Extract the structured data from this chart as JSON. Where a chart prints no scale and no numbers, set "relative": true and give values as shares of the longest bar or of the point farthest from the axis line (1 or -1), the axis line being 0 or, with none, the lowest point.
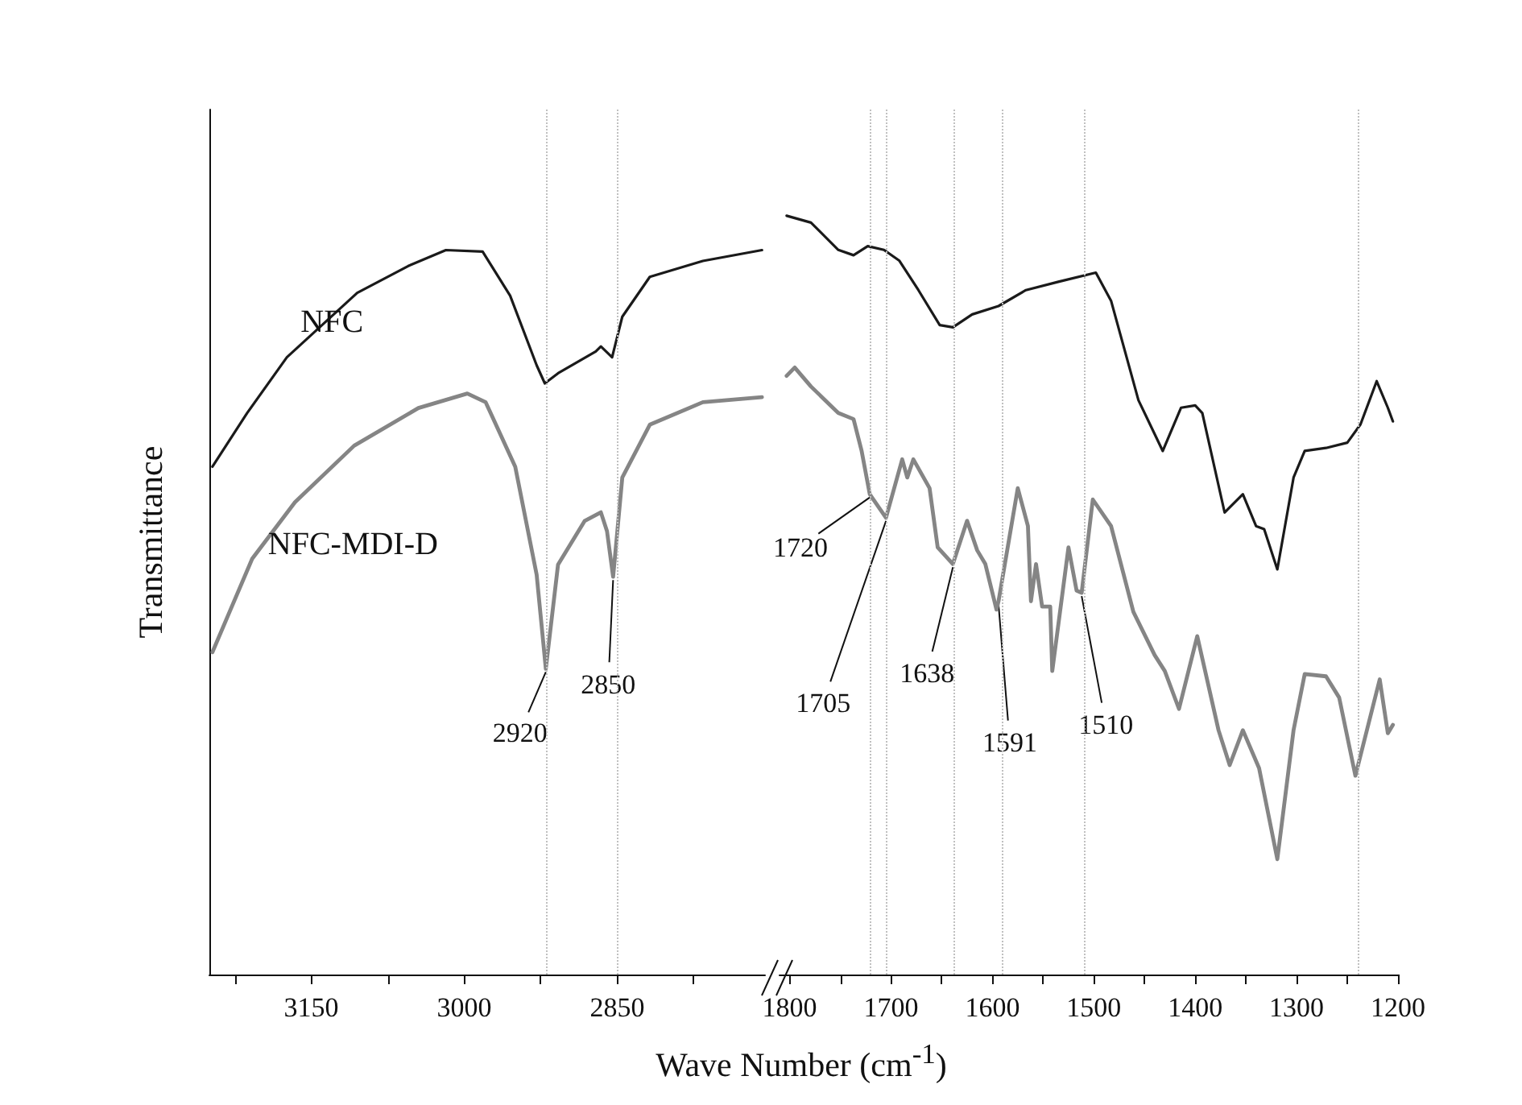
{
  "chart_data": [
    {
      "type": "line",
      "relative": true,
      "ylabel": "Transmittance",
      "xlabel": "Wave Number (cm$^{-1}$)",
      "xlim": [
        3250,
        2705
      ],
      "xticks": [
        {
          "value": 3225,
          "label": null
        },
        3150,
        {
          "value": 3075,
          "label": null
        },
        3000,
        {
          "value": 2925,
          "label": null
        },
        2850,
        {
          "value": 2775,
          "label": null
        }
      ],
      "series": [
        {
          "name": "NFC",
          "color": "#1a1a1a",
          "x": [
            3247,
            3213,
            3174,
            3105,
            3055,
            3018,
            2982,
            2955,
            2929,
            2921,
            2908,
            2871,
            2866,
            2855,
            2845,
            2818,
            2766,
            2708
          ],
          "values": [
            0.701,
            0.775,
            0.852,
            0.941,
            0.978,
            1.0,
            0.998,
            0.937,
            0.841,
            0.816,
            0.83,
            0.86,
            0.867,
            0.852,
            0.908,
            0.963,
            0.985,
            1.0
          ]
        },
        {
          "name": "NFC-MDI-D",
          "color": "#858585",
          "x": [
            3247,
            3208,
            3166,
            3108,
            3045,
            2997,
            2979,
            2950,
            2929,
            2920,
            2908,
            2882,
            2866,
            2860,
            2854,
            2845,
            2818,
            2766,
            2708
          ],
          "values": [
            0.445,
            0.574,
            0.652,
            0.73,
            0.782,
            0.802,
            0.79,
            0.701,
            0.552,
            0.422,
            0.566,
            0.626,
            0.638,
            0.612,
            0.549,
            0.686,
            0.759,
            0.79,
            0.797
          ]
        }
      ],
      "ref_lines": [
        {
          "axis": "x",
          "value": 2920,
          "color": "#c0c0c0",
          "line_style": "dotted"
        },
        {
          "axis": "x",
          "value": 2850,
          "color": "#c0c0c0",
          "line_style": "dotted"
        }
      ],
      "annotations": [
        {
          "text": "2920",
          "x": 2920,
          "y": 0.422
        },
        {
          "text": "2850",
          "x": 2854,
          "y": 0.549
        }
      ]
    },
    {
      "type": "line",
      "relative": true,
      "xlim": [
        1810,
        1200
      ],
      "xticks": [
        1800,
        {
          "value": 1750,
          "label": null
        },
        1700,
        {
          "value": 1650,
          "label": null
        },
        1600,
        {
          "value": 1550,
          "label": null
        },
        1500,
        {
          "value": 1450,
          "label": null
        },
        1400,
        {
          "value": 1350,
          "label": null
        },
        1300,
        {
          "value": 1250,
          "label": null
        },
        1200
      ],
      "series": [
        {
          "color": "#1a1a1a",
          "x": [
            1803,
            1779,
            1752,
            1737,
            1723,
            1707,
            1692,
            1673,
            1652,
            1639,
            1620,
            1594,
            1567,
            1535,
            1498,
            1483,
            1456,
            1432,
            1414,
            1400,
            1393,
            1371,
            1353,
            1340,
            1332,
            1319,
            1303,
            1292,
            1271,
            1250,
            1237,
            1221,
            1210,
            1205
          ],
          "values": [
            1.0,
            0.991,
            0.955,
            0.948,
            0.96,
            0.955,
            0.941,
            0.902,
            0.856,
            0.853,
            0.87,
            0.881,
            0.902,
            0.913,
            0.925,
            0.888,
            0.757,
            0.69,
            0.747,
            0.75,
            0.74,
            0.609,
            0.633,
            0.591,
            0.587,
            0.534,
            0.655,
            0.69,
            0.694,
            0.701,
            0.725,
            0.782,
            0.747,
            0.729
          ]
        },
        {
          "color": "#858585",
          "x": [
            1803,
            1795,
            1779,
            1752,
            1737,
            1729,
            1721,
            1705,
            1689,
            1684,
            1678,
            1662,
            1654,
            1639,
            1625,
            1615,
            1607,
            1596,
            1594,
            1575,
            1565,
            1562,
            1557,
            1551,
            1543,
            1541,
            1525,
            1517,
            1512,
            1501,
            1483,
            1461,
            1440,
            1430,
            1416,
            1398,
            1377,
            1366,
            1353,
            1337,
            1319,
            1303,
            1292,
            1271,
            1258,
            1242,
            1218,
            1210,
            1205
          ],
          "values": [
            0.789,
            0.8,
            0.775,
            0.74,
            0.732,
            0.69,
            0.633,
            0.602,
            0.679,
            0.655,
            0.679,
            0.641,
            0.563,
            0.541,
            0.598,
            0.559,
            0.541,
            0.481,
            0.492,
            0.641,
            0.591,
            0.492,
            0.541,
            0.485,
            0.485,
            0.4,
            0.563,
            0.506,
            0.503,
            0.626,
            0.591,
            0.478,
            0.421,
            0.4,
            0.35,
            0.446,
            0.322,
            0.276,
            0.322,
            0.272,
            0.152,
            0.322,
            0.396,
            0.393,
            0.365,
            0.262,
            0.389,
            0.318,
            0.329
          ]
        }
      ],
      "ref_lines": [
        {
          "axis": "x",
          "value": 1720,
          "color": "#c0c0c0",
          "line_style": "dotted"
        },
        {
          "axis": "x",
          "value": 1705,
          "color": "#c0c0c0",
          "line_style": "dotted"
        },
        {
          "axis": "x",
          "value": 1638,
          "color": "#c0c0c0",
          "line_style": "dotted"
        },
        {
          "axis": "x",
          "value": 1591,
          "color": "#c0c0c0",
          "line_style": "dotted"
        },
        {
          "axis": "x",
          "value": 1510,
          "color": "#c0c0c0",
          "line_style": "dotted"
        },
        {
          "axis": "x",
          "value": 1240,
          "color": "#c0c0c0",
          "line_style": "dotted"
        }
      ],
      "annotations": [
        {
          "text": "1720",
          "x": 1721,
          "y": 0.633
        },
        {
          "text": "1705",
          "x": 1705,
          "y": 0.602
        },
        {
          "text": "1638",
          "x": 1639,
          "y": 0.541
        },
        {
          "text": "1591",
          "x": 1594,
          "y": 0.492
        },
        {
          "text": "1510",
          "x": 1512,
          "y": 0.503
        }
      ]
    }
  ]
}
